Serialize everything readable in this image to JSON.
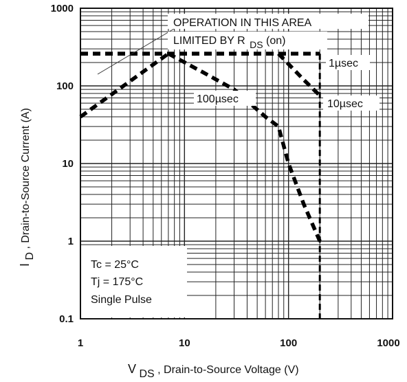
{
  "chart_data": {
    "type": "line",
    "title": "",
    "xlabel": {
      "main": "V",
      "sub": "DS",
      "rest": " , Drain-to-Source Voltage (V)"
    },
    "ylabel": {
      "main": "I",
      "sub": "D",
      "rest": ",  Drain-to-Source Current (A)"
    },
    "x_scale": "log",
    "y_scale": "log",
    "xlim": [
      1,
      1000
    ],
    "ylim": [
      0.1,
      1000
    ],
    "x_ticks": [
      {
        "value": 1,
        "label": "1"
      },
      {
        "value": 10,
        "label": "10"
      },
      {
        "value": 100,
        "label": "100"
      },
      {
        "value": 1000,
        "label": "1000"
      }
    ],
    "y_ticks": [
      {
        "value": 0.1,
        "label": "0.1"
      },
      {
        "value": 1,
        "label": "1"
      },
      {
        "value": 10,
        "label": "10"
      },
      {
        "value": 100,
        "label": "100"
      },
      {
        "value": 1000,
        "label": "1000"
      }
    ],
    "grid": true,
    "series": [
      {
        "label": "1µsec",
        "points": [
          [
            1,
            260
          ],
          [
            200,
            260
          ]
        ]
      },
      {
        "label": "10µsec",
        "points": [
          [
            1,
            260
          ],
          [
            80,
            260
          ],
          [
            140,
            120
          ],
          [
            200,
            75
          ]
        ]
      },
      {
        "label": "100µsec",
        "points": [
          [
            7,
            260
          ],
          [
            15,
            150
          ],
          [
            30,
            90
          ],
          [
            60,
            40
          ],
          [
            80,
            30
          ],
          [
            100,
            10
          ],
          [
            140,
            3
          ],
          [
            200,
            1
          ]
        ]
      },
      {
        "label": "",
        "points": [
          [
            1,
            40
          ],
          [
            7,
            260
          ]
        ]
      },
      {
        "label": "",
        "points": [
          [
            200,
            260
          ],
          [
            200,
            0.1
          ]
        ]
      }
    ],
    "annotations": {
      "operation_line1": "OPERATION IN THIS AREA",
      "operation_line2": "LIMITED BY R",
      "operation_sub": "DS",
      "operation_tail": "(on)",
      "label_1us": "1µsec",
      "label_10us": "10µsec",
      "label_100us": "100µsec"
    },
    "legend_box": {
      "lines": [
        "Tc = 25°C",
        "Tj = 175°C",
        "Single Pulse"
      ],
      "placement": "bottom-left"
    }
  }
}
